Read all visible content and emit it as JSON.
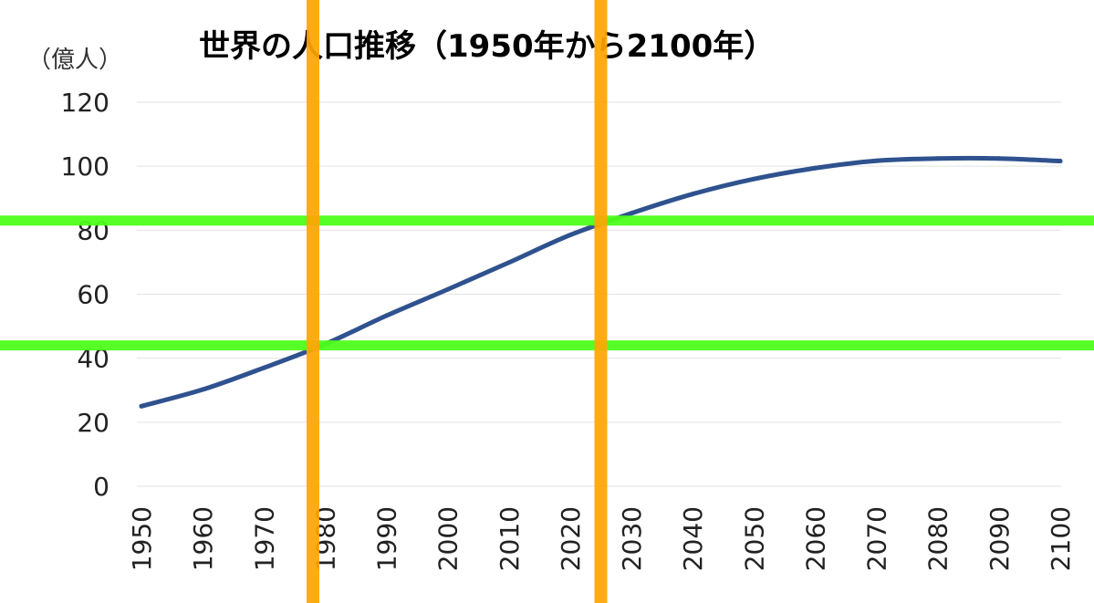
{
  "chart_data": {
    "type": "line",
    "title": "世界の人口推移（1950年から2100年）",
    "unit_label": "（億人）",
    "xlabel": "",
    "ylabel": "",
    "x": [
      1950,
      1960,
      1970,
      1980,
      1990,
      2000,
      2010,
      2020,
      2030,
      2040,
      2050,
      2060,
      2070,
      2080,
      2090,
      2100
    ],
    "x_tick_labels": [
      "1950",
      "1960",
      "1970",
      "1980",
      "1990",
      "2000",
      "2010",
      "2020",
      "2030",
      "2040",
      "2050",
      "2060",
      "2070",
      "2080",
      "2090",
      "2100"
    ],
    "ylim": [
      0,
      120
    ],
    "y_ticks": [
      0,
      20,
      40,
      60,
      80,
      100,
      120
    ],
    "y_tick_labels": [
      "0",
      "20",
      "40",
      "60",
      "80",
      "100",
      "120"
    ],
    "grid": true,
    "series": [
      {
        "values": [
          25.0,
          30.2,
          37.0,
          44.4,
          53.3,
          61.5,
          69.9,
          78.5,
          85.3,
          91.3,
          96.0,
          99.4,
          101.7,
          102.4,
          102.4,
          101.6
        ],
        "color": "#2f528f"
      }
    ],
    "highlight_vertical_years": [
      1978,
      2025
    ],
    "highlight_vertical_color": "#ffa500",
    "highlight_horizontal_values": [
      44,
      83
    ],
    "highlight_horizontal_color": "#4dff1a"
  }
}
